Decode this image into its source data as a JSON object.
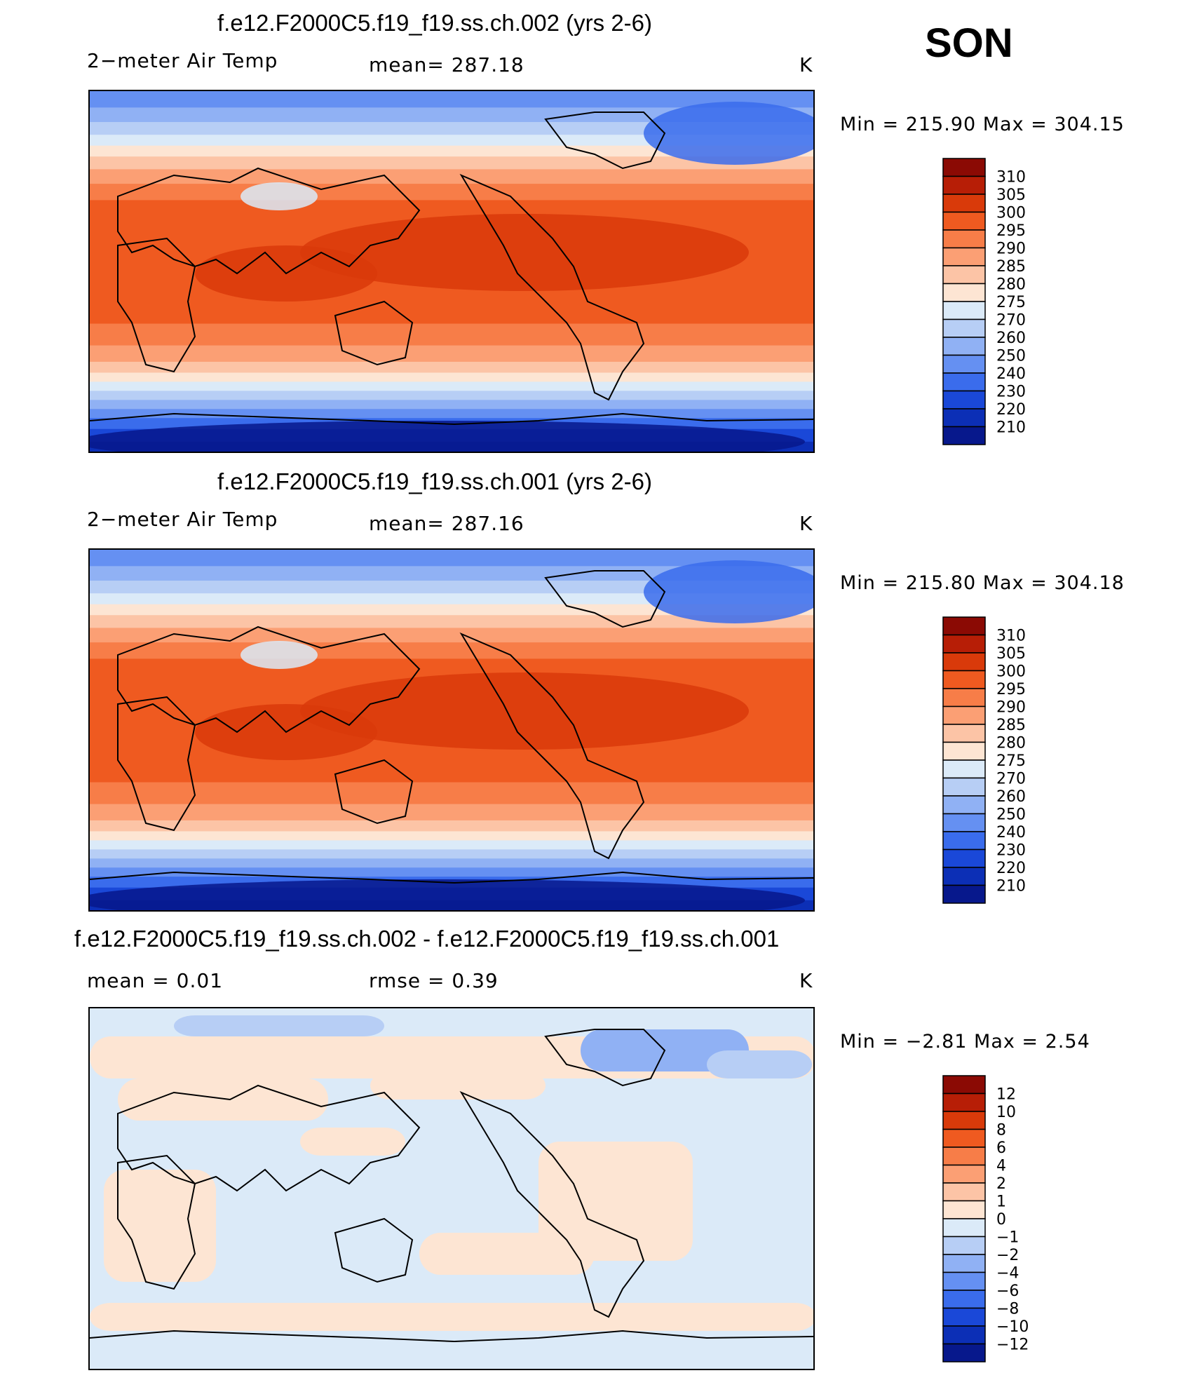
{
  "season": "SON",
  "panels": [
    {
      "id": "case2",
      "title": "f.e12.F2000C5.f19_f19.ss.ch.002 (yrs 2-6)",
      "left_label": "2−meter Air Temp",
      "center_label": "mean=  287.18",
      "units": "K",
      "minmax": "Min  =  215.90  Max  =  304.15",
      "kind": "abs"
    },
    {
      "id": "case1",
      "title": "f.e12.F2000C5.f19_f19.ss.ch.001 (yrs 2-6)",
      "left_label": "2−meter Air Temp",
      "center_label": "mean=  287.16",
      "units": "K",
      "minmax": "Min  =  215.80  Max  =  304.18",
      "kind": "abs"
    },
    {
      "id": "diff",
      "title": "f.e12.F2000C5.f19_f19.ss.ch.002 - f.e12.F2000C5.f19_f19.ss.ch.001",
      "left_label": "mean  =      0.01",
      "center_label": "rmse  =      0.39",
      "units": "K",
      "minmax": "Min  =     −2.81  Max  =      2.54",
      "kind": "diff"
    }
  ],
  "colorbars": {
    "abs": {
      "labels": [
        "310",
        "305",
        "300",
        "295",
        "290",
        "285",
        "280",
        "275",
        "270",
        "260",
        "250",
        "240",
        "230",
        "220",
        "210"
      ],
      "colors": [
        "#8b0a04",
        "#b71e06",
        "#d93a0a",
        "#ef5a20",
        "#f77d48",
        "#fb9f74",
        "#fcc4a6",
        "#fde5d3",
        "#dbeaf8",
        "#b7cef5",
        "#90b1f4",
        "#6590f2",
        "#3a6cec",
        "#1a48d8",
        "#0c2fb6",
        "#07188c"
      ]
    },
    "diff": {
      "labels": [
        "12",
        "10",
        "8",
        "6",
        "4",
        "2",
        "1",
        "0",
        "−1",
        "−2",
        "−4",
        "−6",
        "−8",
        "−10",
        "−12"
      ],
      "colors": [
        "#8b0a04",
        "#b71e06",
        "#d93a0a",
        "#ef5a20",
        "#f77d48",
        "#fb9f74",
        "#fcc4a6",
        "#fde5d3",
        "#dbeaf8",
        "#b7cef5",
        "#90b1f4",
        "#6590f2",
        "#3a6cec",
        "#1a48d8",
        "#0c2fb6",
        "#07188c"
      ]
    }
  }
}
